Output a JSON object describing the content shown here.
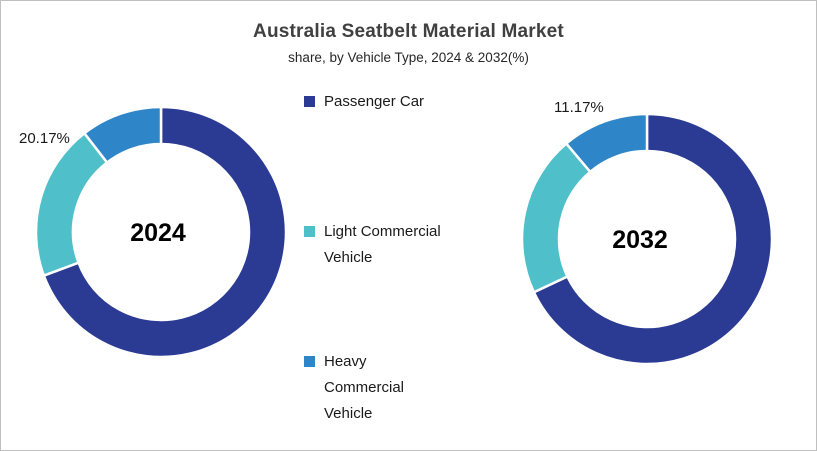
{
  "header": {
    "title": "Australia Seatbelt Material Market",
    "subtitle": "share, by Vehicle Type, 2024 & 2032(%)"
  },
  "colors": {
    "passenger_car": "#2B3B94",
    "light_commercial_vehicle": "#4FC0C9",
    "heavy_commercial_vehicle": "#2E86C8",
    "title_text": "#404040",
    "body_text": "#1A1A1A",
    "frame_border": "#BFBFBF",
    "background": "#FFFFFF"
  },
  "legend": {
    "items": [
      {
        "label": "Passenger Car",
        "lines": [
          "Passenger Car"
        ],
        "color": "#2B3B94"
      },
      {
        "label": "Light Commercial Vehicle",
        "lines": [
          "Light Commercial",
          "Vehicle"
        ],
        "color": "#4FC0C9"
      },
      {
        "label": "Heavy Commercial Vehicle",
        "lines": [
          "Heavy",
          "Commercial",
          "Vehicle"
        ],
        "color": "#2E86C8"
      }
    ]
  },
  "chart_data": {
    "type": "pie",
    "subtype": "donut",
    "title": "Australia Seatbelt Material Market",
    "subtitle": "share, by Vehicle Type, 2024 & 2032(%)",
    "unit": "%",
    "legend_position": "center-between-charts",
    "categories": [
      "Passenger Car",
      "Light Commercial Vehicle",
      "Heavy Commercial Vehicle"
    ],
    "colors": [
      "#2B3B94",
      "#4FC0C9",
      "#2E86C8"
    ],
    "charts": [
      {
        "year": "2024",
        "values": [
          69.33,
          20.17,
          10.5
        ],
        "shown_labels": [
          {
            "category": "Light Commercial Vehicle",
            "text": "20.17%"
          }
        ]
      },
      {
        "year": "2032",
        "values": [
          68.0,
          20.83,
          11.17
        ],
        "shown_labels": [
          {
            "category": "Heavy Commercial Vehicle",
            "text": "11.17%"
          }
        ]
      }
    ],
    "note": "Only the 20.17% (2024 Light Commercial Vehicle) and 11.17% (2032 Heavy Commercial Vehicle) slices carry data labels in the image; remaining values are estimated from arc angles."
  }
}
